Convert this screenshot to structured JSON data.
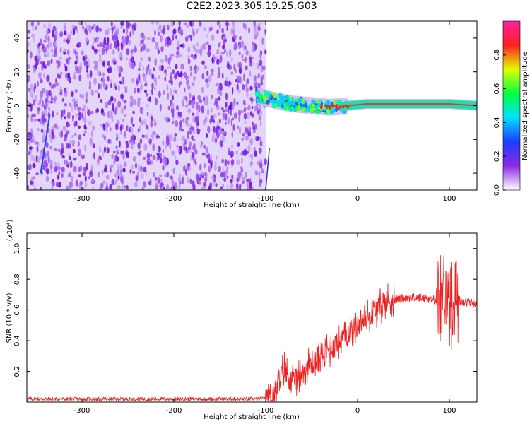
{
  "title": "C2E2.2023.305.19.25.G03",
  "chart_data": [
    {
      "type": "heatmap",
      "xlabel": "Height of straight line (km)",
      "ylabel": "Frequency (Hz)",
      "xlim": [
        -360,
        130
      ],
      "ylim": [
        -50,
        50
      ],
      "xticks": [
        -300,
        -200,
        -100,
        0,
        100
      ],
      "yticks": [
        -40,
        -20,
        0,
        20,
        40
      ],
      "colorbar": {
        "label": "Normalized spectral amplitude",
        "range": [
          0,
          1
        ],
        "ticks": [
          "0.0",
          "0.2",
          "0.4",
          "0.6",
          "0.8"
        ],
        "colors": [
          "#ffffff",
          "#8a2be2",
          "#1e3cff",
          "#00e0ff",
          "#00ff40",
          "#e0ff00",
          "#ff2020",
          "#ff20a0"
        ]
      },
      "features": {
        "noise_region_x": [
          -360,
          -100
        ],
        "signal_center_freq_hz": 0,
        "signal_trace": [
          {
            "x": -110,
            "y": 6
          },
          {
            "x": -90,
            "y": 3
          },
          {
            "x": -70,
            "y": 1
          },
          {
            "x": -50,
            "y": 0
          },
          {
            "x": -30,
            "y": -1
          },
          {
            "x": -10,
            "y": 0
          },
          {
            "x": 10,
            "y": 1
          },
          {
            "x": 60,
            "y": 1
          },
          {
            "x": 100,
            "y": 1
          },
          {
            "x": 130,
            "y": 0
          }
        ]
      },
      "grid": false
    },
    {
      "type": "line",
      "xlabel": "Height of straight line (km)",
      "ylabel": "SNR (10 * v/v)",
      "yscale_label": "(x10⁴)",
      "xlim": [
        -360,
        130
      ],
      "ylim": [
        0,
        1.1
      ],
      "xticks": [
        -300,
        -200,
        -100,
        0,
        100
      ],
      "yticks": [
        "0.2",
        "0.4",
        "0.6",
        "0.8",
        "1.0"
      ],
      "series": [
        {
          "color": "#ee2020",
          "points": [
            {
              "x": -360,
              "y": 0.02
            },
            {
              "x": -250,
              "y": 0.02
            },
            {
              "x": -150,
              "y": 0.02
            },
            {
              "x": -105,
              "y": 0.02
            },
            {
              "x": -90,
              "y": 0.05
            },
            {
              "x": -80,
              "y": 0.22
            },
            {
              "x": -70,
              "y": 0.12
            },
            {
              "x": -60,
              "y": 0.2
            },
            {
              "x": -50,
              "y": 0.25
            },
            {
              "x": -40,
              "y": 0.3
            },
            {
              "x": -30,
              "y": 0.35
            },
            {
              "x": -20,
              "y": 0.4
            },
            {
              "x": -10,
              "y": 0.45
            },
            {
              "x": 0,
              "y": 0.5
            },
            {
              "x": 10,
              "y": 0.55
            },
            {
              "x": 20,
              "y": 0.6
            },
            {
              "x": 30,
              "y": 0.65
            },
            {
              "x": 50,
              "y": 0.68
            },
            {
              "x": 70,
              "y": 0.68
            },
            {
              "x": 90,
              "y": 0.66
            },
            {
              "x": 100,
              "y": 0.7
            },
            {
              "x": 110,
              "y": 0.66
            },
            {
              "x": 130,
              "y": 0.64
            }
          ]
        }
      ],
      "grid": false
    }
  ]
}
